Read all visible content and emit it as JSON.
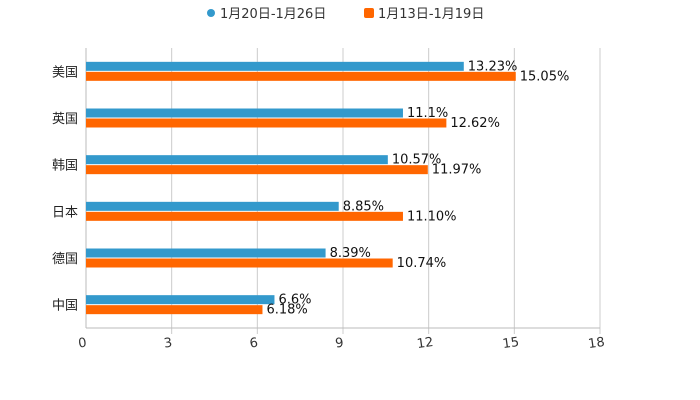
{
  "chart_data": {
    "type": "bar",
    "orientation": "horizontal",
    "categories": [
      "美国",
      "英国",
      "韩国",
      "日本",
      "德国",
      "中国"
    ],
    "series": [
      {
        "name": "1月20日-1月26日",
        "color": "#3399CC",
        "values": [
          13.23,
          11.1,
          10.57,
          8.85,
          8.39,
          6.6
        ],
        "labels": [
          "13.23%",
          "11.1%",
          "10.57%",
          "8.85%",
          "8.39%",
          "6.6%"
        ]
      },
      {
        "name": "1月13日-1月19日",
        "color": "#FF6600",
        "values": [
          15.05,
          12.62,
          11.97,
          11.1,
          10.74,
          6.18
        ],
        "labels": [
          "15.05%",
          "12.62%",
          "11.97%",
          "11.10%",
          "10.74%",
          "6.18%"
        ]
      }
    ],
    "xlim": [
      0,
      18
    ],
    "ticks": [
      0,
      3,
      6,
      9,
      12,
      15,
      18
    ],
    "tick_labels": [
      "0",
      "3",
      "6",
      "9",
      "12",
      "15",
      "18"
    ],
    "grid": "vertical",
    "legend": "top-center",
    "title": "",
    "xlabel": "",
    "ylabel": ""
  }
}
